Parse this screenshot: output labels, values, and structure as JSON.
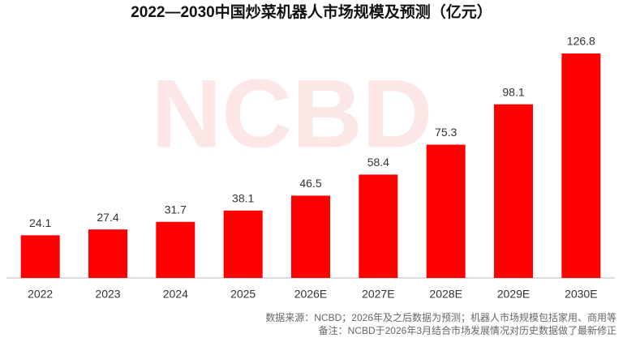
{
  "chart_data": {
    "type": "bar",
    "title": "2022—2030中国炒菜机器人市场规模及预测（亿元）",
    "categories": [
      "2022",
      "2023",
      "2024",
      "2025",
      "2026E",
      "2027E",
      "2028E",
      "2029E",
      "2030E"
    ],
    "values": [
      24.1,
      27.4,
      31.7,
      38.1,
      46.5,
      58.4,
      75.3,
      98.1,
      126.8
    ],
    "color": "#ff0000",
    "watermark": "NCBD",
    "notes": [
      "数据来源：NCBD；2026年及之后数据为预测；机器人市场规模包括家用、商用等",
      "备注：NCBD于2026年3月结合市场发展情况对历史数据做了最新修正"
    ]
  }
}
